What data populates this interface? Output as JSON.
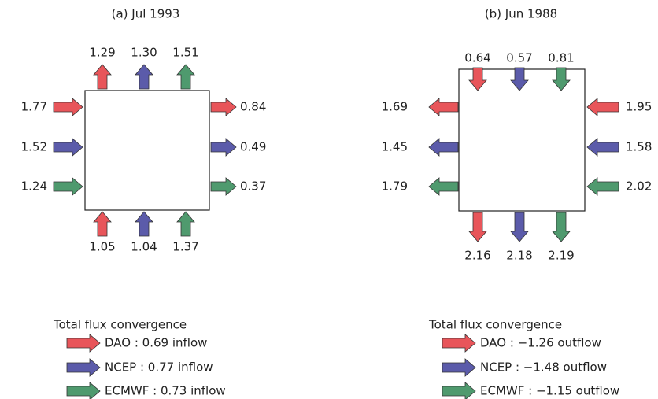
{
  "panels": [
    {
      "title": "(a) Jul 1993",
      "top": [
        "1.29",
        "1.30",
        "1.51"
      ],
      "left": [
        "1.77",
        "1.52",
        "1.24"
      ],
      "right": [
        "0.84",
        "0.49",
        "0.37"
      ],
      "bottom": [
        "1.05",
        "1.04",
        "1.37"
      ],
      "legend": {
        "title": "Total flux convergence",
        "entries": [
          "DAO : 0.69 inflow",
          "NCEP : 0.77 inflow",
          "ECMWF : 0.73 inflow"
        ]
      }
    },
    {
      "title": "(b) Jun 1988",
      "top": [
        "0.64",
        "0.57",
        "0.81"
      ],
      "left": [
        "1.69",
        "1.45",
        "1.79"
      ],
      "right": [
        "1.95",
        "1.58",
        "2.02"
      ],
      "bottom": [
        "2.16",
        "2.18",
        "2.19"
      ],
      "legend": {
        "title": "Total flux convergence",
        "entries": [
          "DAO : −1.26 outflow",
          "NCEP : −1.48 outflow",
          "ECMWF : −1.15 outflow"
        ]
      }
    }
  ]
}
